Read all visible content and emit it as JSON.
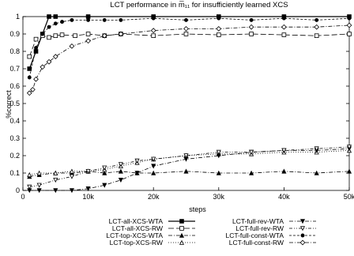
{
  "chart_data": {
    "type": "line",
    "title": "LCT performance in m̅₁₁ for insufficiently learned XCS",
    "xlabel": "steps",
    "ylabel": "%correct",
    "xlim": [
      0,
      50000
    ],
    "ylim": [
      0,
      1
    ],
    "x_ticks": [
      0,
      10000,
      20000,
      30000,
      40000,
      50000
    ],
    "x_tick_labels": [
      "0",
      "10k",
      "20k",
      "30k",
      "40k",
      "50k"
    ],
    "y_ticks": [
      0,
      0.1,
      0.2,
      0.3,
      0.4,
      0.5,
      0.6,
      0.7,
      0.8,
      0.9,
      1
    ],
    "y_tick_labels": [
      "0",
      "0.1",
      "0.2",
      "0.3",
      "0.4",
      "0.5",
      "0.6",
      "0.7",
      "0.8",
      "0.9",
      "1"
    ],
    "grid": false,
    "legend_position": "bottom",
    "series": [
      {
        "name": "LCT-all-XCS-WTA",
        "marker": "filled-square",
        "dash": "solid",
        "x": [
          1000,
          2000,
          3000,
          4000,
          5000,
          10000,
          20000,
          30000,
          40000,
          50000
        ],
        "y": [
          0.7,
          0.8,
          0.9,
          1.0,
          1.0,
          1.0,
          1.0,
          1.0,
          1.0,
          1.0
        ]
      },
      {
        "name": "LCT-all-XCS-RW",
        "marker": "open-square",
        "dash": "long-dash",
        "x": [
          1000,
          2000,
          3000,
          4000,
          5000,
          6000,
          8000,
          10000,
          12500,
          15000,
          20000,
          25000,
          30000,
          35000,
          40000,
          45000,
          50000
        ],
        "y": [
          0.77,
          0.87,
          0.89,
          0.88,
          0.89,
          0.895,
          0.89,
          0.9,
          0.89,
          0.9,
          0.89,
          0.9,
          0.895,
          0.9,
          0.895,
          0.89,
          0.9
        ]
      },
      {
        "name": "LCT-top-XCS-WTA",
        "marker": "filled-triangle",
        "dash": "dash-dot",
        "x": [
          1000,
          2500,
          5000,
          7500,
          10000,
          12500,
          15000,
          17500,
          20000,
          25000,
          30000,
          35000,
          40000,
          45000,
          50000
        ],
        "y": [
          0.08,
          0.09,
          0.1,
          0.1,
          0.11,
          0.1,
          0.11,
          0.1,
          0.1,
          0.11,
          0.1,
          0.1,
          0.11,
          0.1,
          0.11
        ]
      },
      {
        "name": "LCT-top-XCS-RW",
        "marker": "open-triangle",
        "dash": "dotted",
        "x": [
          1000,
          2500,
          5000,
          7500,
          10000,
          12500,
          15000,
          17500,
          20000,
          25000,
          30000,
          35000,
          40000,
          45000,
          50000
        ],
        "y": [
          0.09,
          0.1,
          0.1,
          0.11,
          0.11,
          0.12,
          0.14,
          0.16,
          0.18,
          0.2,
          0.21,
          0.21,
          0.22,
          0.22,
          0.23
        ]
      },
      {
        "name": "LCT-full-rev-WTA",
        "marker": "filled-down-triangle",
        "dash": "dash-dot",
        "x": [
          1000,
          2500,
          5000,
          7500,
          10000,
          12500,
          15000,
          17500,
          20000,
          25000,
          30000,
          35000,
          40000,
          45000,
          50000
        ],
        "y": [
          0.0,
          0.0,
          0.0,
          0.0,
          0.01,
          0.03,
          0.06,
          0.1,
          0.14,
          0.18,
          0.2,
          0.22,
          0.23,
          0.23,
          0.24
        ]
      },
      {
        "name": "LCT-full-rev-RW",
        "marker": "open-down-triangle",
        "dash": "dash-dot-dot",
        "x": [
          1000,
          2500,
          5000,
          7500,
          10000,
          12500,
          15000,
          17500,
          20000,
          25000,
          30000,
          35000,
          40000,
          45000,
          50000
        ],
        "y": [
          0.02,
          0.03,
          0.06,
          0.08,
          0.11,
          0.13,
          0.15,
          0.17,
          0.18,
          0.2,
          0.22,
          0.22,
          0.23,
          0.24,
          0.25
        ]
      },
      {
        "name": "LCT-full-const-WTA",
        "marker": "filled-circle",
        "dash": "short-dash",
        "x": [
          1000,
          2000,
          3000,
          4000,
          5000,
          6000,
          7500,
          10000,
          12500,
          15000,
          20000,
          25000,
          30000,
          35000,
          40000,
          45000,
          50000
        ],
        "y": [
          0.65,
          0.82,
          0.9,
          0.94,
          0.96,
          0.97,
          0.98,
          0.98,
          0.98,
          0.98,
          0.99,
          0.98,
          0.99,
          0.98,
          0.99,
          0.98,
          0.99
        ]
      },
      {
        "name": "LCT-full-const-RW",
        "marker": "open-diamond",
        "dash": "dash-dot",
        "x": [
          1000,
          1500,
          2000,
          3000,
          4000,
          5000,
          7500,
          10000,
          12500,
          15000,
          20000,
          25000,
          30000,
          35000,
          40000,
          45000,
          50000
        ],
        "y": [
          0.56,
          0.58,
          0.64,
          0.71,
          0.74,
          0.77,
          0.83,
          0.86,
          0.89,
          0.9,
          0.92,
          0.93,
          0.93,
          0.94,
          0.94,
          0.94,
          0.95
        ]
      }
    ]
  }
}
